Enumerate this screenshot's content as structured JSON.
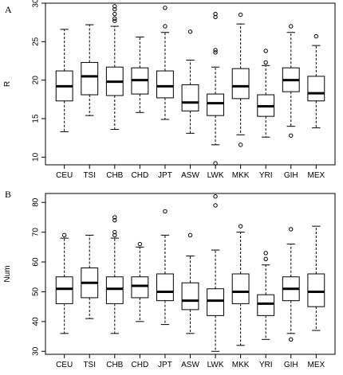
{
  "chart_data": [
    {
      "type": "boxplot",
      "panel_label": "A",
      "ylabel": "R",
      "ylim": [
        9,
        30
      ],
      "yticks": [
        10,
        15,
        20,
        25,
        30
      ],
      "categories": [
        "CEU",
        "TSI",
        "CHB",
        "CHD",
        "JPT",
        "ASW",
        "LWK",
        "MKK",
        "YRI",
        "GIH",
        "MEX"
      ],
      "boxes": [
        {
          "name": "CEU",
          "whisker_low": 13.3,
          "q1": 17.3,
          "median": 19.2,
          "q3": 21.2,
          "whisker_high": 26.6,
          "outliers": []
        },
        {
          "name": "TSI",
          "whisker_low": 15.4,
          "q1": 18.1,
          "median": 20.5,
          "q3": 22.3,
          "whisker_high": 27.2,
          "outliers": []
        },
        {
          "name": "CHB",
          "whisker_low": 13.6,
          "q1": 18.0,
          "median": 19.8,
          "q3": 21.7,
          "whisker_high": 27.0,
          "outliers": [
            27.7,
            28.0,
            28.6,
            29.2,
            29.6
          ]
        },
        {
          "name": "CHD",
          "whisker_low": 15.8,
          "q1": 18.2,
          "median": 20.0,
          "q3": 21.6,
          "whisker_high": 25.6,
          "outliers": []
        },
        {
          "name": "JPT",
          "whisker_low": 14.9,
          "q1": 17.7,
          "median": 19.2,
          "q3": 21.2,
          "whisker_high": 26.2,
          "outliers": [
            27.0,
            29.4
          ]
        },
        {
          "name": "ASW",
          "whisker_low": 13.1,
          "q1": 16.0,
          "median": 17.1,
          "q3": 19.4,
          "whisker_high": 22.6,
          "outliers": [
            26.3
          ]
        },
        {
          "name": "LWK",
          "whisker_low": 11.6,
          "q1": 15.4,
          "median": 17.0,
          "q3": 18.2,
          "whisker_high": 21.7,
          "outliers": [
            9.2,
            23.6,
            23.9,
            28.2,
            28.6
          ]
        },
        {
          "name": "MKK",
          "whisker_low": 12.9,
          "q1": 17.6,
          "median": 19.2,
          "q3": 21.5,
          "whisker_high": 27.3,
          "outliers": [
            11.6,
            28.5
          ]
        },
        {
          "name": "YRI",
          "whisker_low": 12.6,
          "q1": 15.3,
          "median": 16.6,
          "q3": 18.1,
          "whisker_high": 21.9,
          "outliers": [
            22.3,
            23.8
          ]
        },
        {
          "name": "GIH",
          "whisker_low": 14.0,
          "q1": 18.5,
          "median": 20.0,
          "q3": 21.6,
          "whisker_high": 26.2,
          "outliers": [
            12.8,
            27.0
          ]
        },
        {
          "name": "MEX",
          "whisker_low": 13.8,
          "q1": 17.3,
          "median": 18.3,
          "q3": 20.5,
          "whisker_high": 24.5,
          "outliers": [
            25.7
          ]
        }
      ]
    },
    {
      "type": "boxplot",
      "panel_label": "B",
      "ylabel": "Num",
      "ylim": [
        29,
        83
      ],
      "yticks": [
        30,
        40,
        50,
        60,
        70,
        80
      ],
      "categories": [
        "CEU",
        "TSI",
        "CHB",
        "CHD",
        "JPT",
        "ASW",
        "LWK",
        "MKK",
        "YRI",
        "GIH",
        "MEX"
      ],
      "boxes": [
        {
          "name": "CEU",
          "whisker_low": 36,
          "q1": 46,
          "median": 51,
          "q3": 55,
          "whisker_high": 68,
          "outliers": [
            69
          ]
        },
        {
          "name": "TSI",
          "whisker_low": 41,
          "q1": 48,
          "median": 53,
          "q3": 58,
          "whisker_high": 69,
          "outliers": []
        },
        {
          "name": "CHB",
          "whisker_low": 36,
          "q1": 46,
          "median": 51,
          "q3": 55,
          "whisker_high": 68,
          "outliers": [
            69,
            70,
            74,
            75
          ]
        },
        {
          "name": "CHD",
          "whisker_low": 40,
          "q1": 48,
          "median": 52,
          "q3": 55,
          "whisker_high": 65,
          "outliers": [
            66
          ]
        },
        {
          "name": "JPT",
          "whisker_low": 39,
          "q1": 47,
          "median": 50,
          "q3": 56,
          "whisker_high": 69,
          "outliers": [
            77
          ]
        },
        {
          "name": "ASW",
          "whisker_low": 36,
          "q1": 44,
          "median": 47,
          "q3": 53,
          "whisker_high": 62,
          "outliers": [
            69
          ]
        },
        {
          "name": "LWK",
          "whisker_low": 30,
          "q1": 42,
          "median": 47,
          "q3": 51,
          "whisker_high": 64,
          "outliers": [
            79,
            82
          ]
        },
        {
          "name": "MKK",
          "whisker_low": 32,
          "q1": 46,
          "median": 50,
          "q3": 56,
          "whisker_high": 70,
          "outliers": [
            72
          ]
        },
        {
          "name": "YRI",
          "whisker_low": 34,
          "q1": 42,
          "median": 46,
          "q3": 49,
          "whisker_high": 59,
          "outliers": [
            61,
            63
          ]
        },
        {
          "name": "GIH",
          "whisker_low": 36,
          "q1": 47,
          "median": 51,
          "q3": 55,
          "whisker_high": 66,
          "outliers": [
            34,
            71
          ]
        },
        {
          "name": "MEX",
          "whisker_low": 37,
          "q1": 45,
          "median": 50,
          "q3": 56,
          "whisker_high": 72,
          "outliers": []
        }
      ]
    }
  ]
}
